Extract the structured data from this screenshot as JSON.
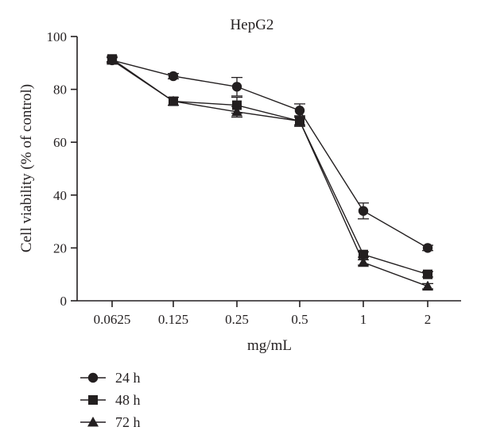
{
  "chart_data": {
    "type": "line",
    "title": "HepG2",
    "xlabel": "mg/mL",
    "ylabel": "Cell viability (% of control)",
    "categories": [
      "0.0625",
      "0.125",
      "0.25",
      "0.5",
      "1",
      "2"
    ],
    "yticks": [
      "0",
      "20",
      "40",
      "60",
      "80",
      "100"
    ],
    "ylim": [
      0,
      100
    ],
    "grid": false,
    "legend_position": "bottom-left",
    "series": [
      {
        "name": "24 h",
        "marker": "circle",
        "values": [
          91,
          85,
          81,
          72,
          34,
          20
        ],
        "errors": [
          1,
          1,
          3.5,
          2.5,
          3,
          1
        ]
      },
      {
        "name": "48 h",
        "marker": "square",
        "values": [
          91.5,
          75.5,
          74,
          68,
          17.5,
          10
        ],
        "errors": [
          1,
          1.5,
          3,
          2,
          1,
          1
        ]
      },
      {
        "name": "72 h",
        "marker": "triangle",
        "values": [
          91,
          75.5,
          71.5,
          68,
          14.5,
          5.5
        ],
        "errors": [
          1,
          1.5,
          2,
          1.5,
          1,
          1
        ]
      }
    ],
    "colors": {
      "line": "#231f20",
      "marker": "#231f20"
    }
  }
}
